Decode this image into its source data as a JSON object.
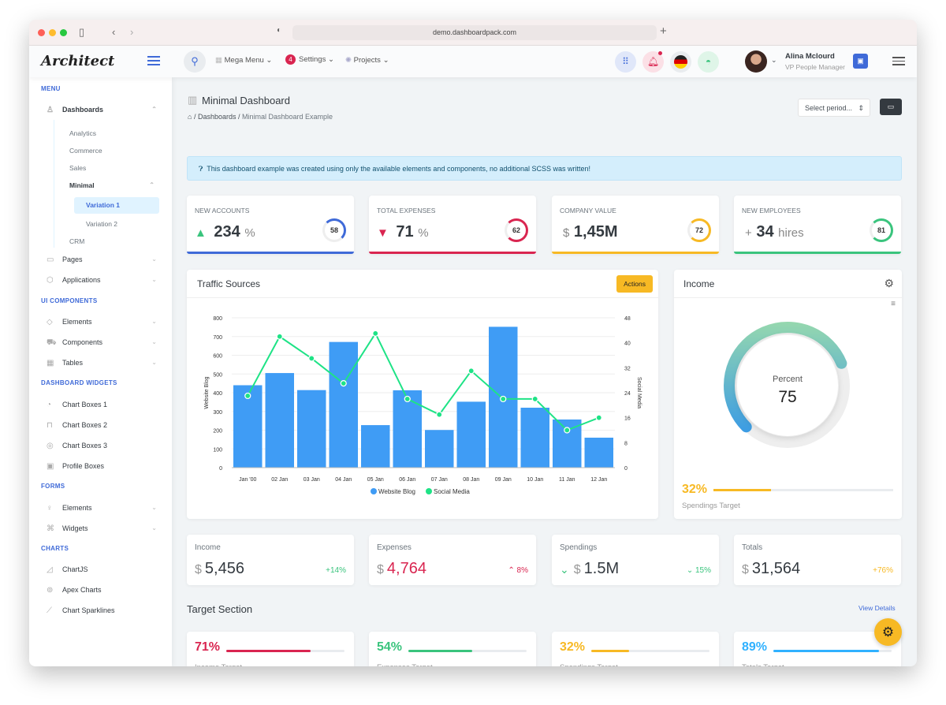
{
  "browser": {
    "url": "demo.dashboardpack.com"
  },
  "header": {
    "logo": "Architect",
    "nav": [
      {
        "label": "Mega Menu",
        "icon": "building-icon"
      },
      {
        "label": "Settings",
        "badge": "4"
      },
      {
        "label": "Projects",
        "icon": "gear-icon"
      }
    ],
    "user": {
      "name": "Alina Mclourd",
      "role": "VP People Manager"
    }
  },
  "sidebar": {
    "sections": [
      "MENU",
      "UI COMPONENTS",
      "DASHBOARD WIDGETS",
      "FORMS",
      "CHARTS"
    ],
    "dashboards": "Dashboards",
    "subs": [
      "Analytics",
      "Commerce",
      "Sales",
      "Minimal",
      "Variation 1",
      "Variation 2",
      "CRM"
    ],
    "items": [
      "Pages",
      "Applications",
      "Elements",
      "Components",
      "Tables",
      "Chart Boxes 1",
      "Chart Boxes 2",
      "Chart Boxes 3",
      "Profile Boxes",
      "Elements",
      "Widgets",
      "ChartJS",
      "Apex Charts",
      "Chart Sparklines"
    ]
  },
  "page": {
    "title": "Minimal Dashboard",
    "breadcrumb": [
      "Dashboards",
      "Minimal Dashboard Example"
    ],
    "select": "Select period...",
    "alert": "This dashboard example was created using only the available elements and components, no additional SCSS was written!"
  },
  "stats": [
    {
      "label": "New Accounts",
      "prefix": "",
      "value": "234",
      "suffix": "%",
      "ring": "58",
      "color": "#3f6ad8",
      "arrow": "▲",
      "arrowColor": "#3ac47d"
    },
    {
      "label": "Total Expenses",
      "prefix": "",
      "value": "71",
      "suffix": "%",
      "ring": "62",
      "color": "#d92550",
      "arrow": "▼",
      "arrowColor": "#d92550"
    },
    {
      "label": "Company Value",
      "prefix": "$",
      "value": "1,45M",
      "suffix": "",
      "ring": "72",
      "color": "#f7b924",
      "arrow": "",
      "arrowColor": "#999"
    },
    {
      "label": "New Employees",
      "prefix": "+",
      "value": "34",
      "suffix": "hires",
      "ring": "81",
      "color": "#3ac47d",
      "arrow": "",
      "arrowColor": "#3ac47d"
    }
  ],
  "traffic": {
    "title": "Traffic Sources",
    "actions": "Actions"
  },
  "chart_data": {
    "type": "bar",
    "categories": [
      "Jan '00",
      "02 Jan",
      "03 Jan",
      "04 Jan",
      "05 Jan",
      "06 Jan",
      "07 Jan",
      "08 Jan",
      "09 Jan",
      "10 Jan",
      "11 Jan",
      "12 Jan"
    ],
    "series": [
      {
        "name": "Website Blog",
        "type": "bar",
        "color": "#3f9cf5",
        "values": [
          440,
          505,
          414,
          671,
          227,
          413,
          201,
          352,
          752,
          320,
          257,
          160
        ]
      },
      {
        "name": "Social Media",
        "type": "line",
        "color": "#1ee386",
        "values": [
          23,
          42,
          35,
          27,
          43,
          22,
          17,
          31,
          22,
          22,
          12,
          16
        ]
      }
    ],
    "ylabel": "Website Blog",
    "y2label": "Social Media",
    "ylim": [
      0,
      800
    ],
    "y2lim": [
      0,
      48
    ],
    "yticks": [
      "0",
      "100",
      "200",
      "300",
      "400",
      "500",
      "600",
      "700",
      "800"
    ],
    "y2ticks": [
      "0",
      "8",
      "16",
      "24",
      "32",
      "40",
      "48"
    ],
    "legend": "bottom",
    "grid": true
  },
  "income": {
    "title": "Income",
    "label": "Percent",
    "value": "75",
    "target_pct": "32%",
    "target_label": "Spendings Target",
    "target_fill": 32
  },
  "small": [
    {
      "label": "Income",
      "value": "5,456",
      "pct": "+14%",
      "color": "#343a40",
      "pctColor": "#3ac47d",
      "arrow": ""
    },
    {
      "label": "Expenses",
      "value": "4,764",
      "pct": "8%",
      "color": "#d92550",
      "pctColor": "#d92550",
      "arrow": "^"
    },
    {
      "label": "Spendings",
      "value": "1.5M",
      "pct": "15%",
      "color": "#343a40",
      "pctColor": "#3ac47d",
      "arrow": "v"
    },
    {
      "label": "Totals",
      "value": "31,564",
      "pct": "+76%",
      "color": "#343a40",
      "pctColor": "#f7b924",
      "arrow": ""
    }
  ],
  "target": {
    "title": "Target Section",
    "link": "View Details",
    "items": [
      {
        "pct": "71%",
        "label": "Income Target",
        "fill": 71,
        "color": "#d92550"
      },
      {
        "pct": "54%",
        "label": "Expenses Target",
        "fill": 54,
        "color": "#3ac47d"
      },
      {
        "pct": "32%",
        "label": "Spendings Target",
        "fill": 32,
        "color": "#f7b924"
      },
      {
        "pct": "89%",
        "label": "Totals Target",
        "fill": 89,
        "color": "#30b1ff"
      }
    ]
  }
}
